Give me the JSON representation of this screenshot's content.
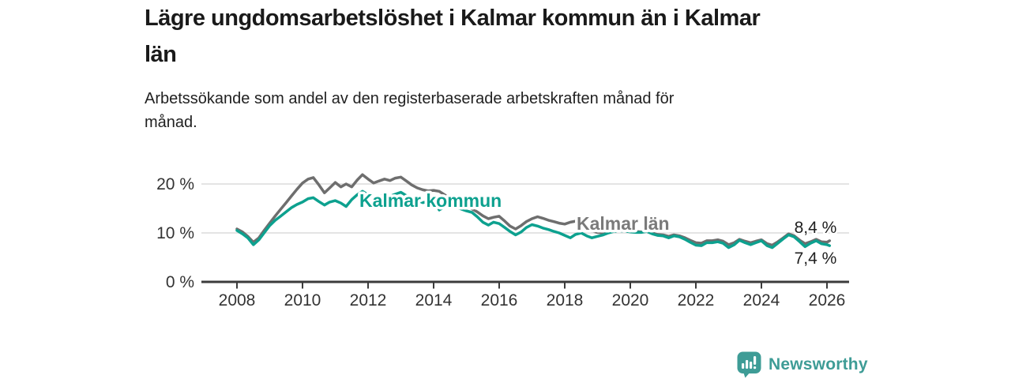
{
  "title": "Lägre ungdomsarbetslöshet i Kalmar kommun än i Kalmar län",
  "title_lines": [
    "Lägre ungdomsarbetslöshet i Kalmar kommun än i Kalmar",
    "län"
  ],
  "subtitle": "Arbetssökande som andel av den registerbaserade arbetskraften månad för månad.",
  "subtitle_lines": [
    "Arbetssökande som andel av den registerbaserade arbetskraften månad för",
    "månad."
  ],
  "branding": {
    "logo_text": "Newsworthy",
    "logo_icon": "bar-chart-speech-bubble-icon",
    "logo_color": "#3e9c96"
  },
  "colors": {
    "kommun_line": "#0da18f",
    "lan_line": "#6e6e6e",
    "lan_label": "#7a7a7a",
    "gridline": "#dcdcdc",
    "axis": "#3b3b3b",
    "tick_text": "#333333",
    "annotation_text": "#1f1f1f"
  },
  "chart_data": {
    "type": "line",
    "title": "Lägre ungdomsarbetslöshet i Kalmar kommun än i Kalmar län",
    "xlabel": "",
    "ylabel": "",
    "unit": "%",
    "grid": "horizontal",
    "legend": "inline-labels",
    "xlim": [
      2006.9,
      2026.7
    ],
    "ylim": [
      0,
      24
    ],
    "yticks": [
      {
        "value": 0,
        "label": "0 %"
      },
      {
        "value": 10,
        "label": "10 %"
      },
      {
        "value": 20,
        "label": "20 %"
      }
    ],
    "xticks": [
      {
        "value": 2008,
        "label": "2008"
      },
      {
        "value": 2010,
        "label": "2010"
      },
      {
        "value": 2012,
        "label": "2012"
      },
      {
        "value": 2014,
        "label": "2014"
      },
      {
        "value": 2016,
        "label": "2016"
      },
      {
        "value": 2018,
        "label": "2018"
      },
      {
        "value": 2020,
        "label": "2020"
      },
      {
        "value": 2022,
        "label": "2022"
      },
      {
        "value": 2024,
        "label": "2024"
      },
      {
        "value": 2026,
        "label": "2026"
      }
    ],
    "x": [
      2008.0,
      2008.17,
      2008.33,
      2008.5,
      2008.67,
      2008.83,
      2009.0,
      2009.17,
      2009.33,
      2009.5,
      2009.67,
      2009.83,
      2010.0,
      2010.17,
      2010.33,
      2010.5,
      2010.67,
      2010.83,
      2011.0,
      2011.17,
      2011.33,
      2011.5,
      2011.67,
      2011.83,
      2012.0,
      2012.17,
      2012.33,
      2012.5,
      2012.67,
      2012.83,
      2013.0,
      2013.17,
      2013.33,
      2013.5,
      2013.67,
      2013.83,
      2014.0,
      2014.17,
      2014.33,
      2014.5,
      2014.67,
      2014.83,
      2015.0,
      2015.17,
      2015.33,
      2015.5,
      2015.67,
      2015.83,
      2016.0,
      2016.17,
      2016.33,
      2016.5,
      2016.67,
      2016.83,
      2017.0,
      2017.17,
      2017.33,
      2017.5,
      2017.67,
      2017.83,
      2018.0,
      2018.17,
      2018.33,
      2018.5,
      2018.67,
      2018.83,
      2019.0,
      2019.17,
      2019.33,
      2019.5,
      2019.67,
      2019.83,
      2020.0,
      2020.17,
      2020.33,
      2020.5,
      2020.67,
      2020.83,
      2021.0,
      2021.17,
      2021.33,
      2021.5,
      2021.67,
      2021.83,
      2022.0,
      2022.17,
      2022.33,
      2022.5,
      2022.67,
      2022.83,
      2023.0,
      2023.17,
      2023.33,
      2023.5,
      2023.67,
      2023.83,
      2024.0,
      2024.17,
      2024.33,
      2024.5,
      2024.67,
      2024.83,
      2025.0,
      2025.17,
      2025.33,
      2025.5,
      2025.67,
      2025.83,
      2026.0,
      2026.08
    ],
    "series": [
      {
        "name": "Kalmar län",
        "color": "#6e6e6e",
        "end_label": "8,4 %",
        "end_value": 8.4,
        "values": [
          10.8,
          10.2,
          9.3,
          8.1,
          9.0,
          10.5,
          12.0,
          13.5,
          14.8,
          16.2,
          17.6,
          18.9,
          20.2,
          21.0,
          21.3,
          19.8,
          18.2,
          19.2,
          20.3,
          19.4,
          20.0,
          19.4,
          20.8,
          21.9,
          21.0,
          20.2,
          20.6,
          21.0,
          20.7,
          21.2,
          21.4,
          20.6,
          19.8,
          19.2,
          18.8,
          18.6,
          18.7,
          18.5,
          17.8,
          17.0,
          16.4,
          15.9,
          15.5,
          14.9,
          14.3,
          13.5,
          12.9,
          13.2,
          13.4,
          12.4,
          11.4,
          10.8,
          11.5,
          12.3,
          12.9,
          13.3,
          13.0,
          12.6,
          12.3,
          12.0,
          11.8,
          12.2,
          12.4,
          11.8,
          11.0,
          10.4,
          10.1,
          10.0,
          10.2,
          10.5,
          10.6,
          10.6,
          10.4,
          10.3,
          10.2,
          10.4,
          10.0,
          9.7,
          9.6,
          9.3,
          9.6,
          9.4,
          9.0,
          8.5,
          8.0,
          7.9,
          8.4,
          8.4,
          8.6,
          8.3,
          7.6,
          8.0,
          8.7,
          8.3,
          8.0,
          8.3,
          8.6,
          7.8,
          7.5,
          8.2,
          9.0,
          9.8,
          9.4,
          8.5,
          7.8,
          8.2,
          8.7,
          8.2,
          8.1,
          8.4
        ]
      },
      {
        "name": "Kalmar kommun",
        "color": "#0da18f",
        "end_label": "7,4 %",
        "end_value": 7.4,
        "values": [
          10.5,
          9.8,
          9.0,
          7.6,
          8.6,
          10.0,
          11.5,
          12.6,
          13.4,
          14.3,
          15.2,
          15.8,
          16.3,
          17.0,
          17.2,
          16.4,
          15.7,
          16.3,
          16.6,
          16.1,
          15.4,
          16.8,
          17.8,
          18.5,
          17.8,
          16.9,
          17.3,
          17.8,
          17.5,
          17.9,
          18.3,
          17.6,
          17.0,
          16.6,
          16.2,
          16.4,
          16.8,
          14.7,
          15.3,
          15.8,
          15.4,
          14.9,
          14.5,
          14.2,
          13.3,
          12.2,
          11.6,
          12.2,
          11.9,
          11.1,
          10.3,
          9.6,
          10.2,
          11.1,
          11.7,
          11.4,
          11.0,
          10.7,
          10.3,
          10.0,
          9.5,
          9.0,
          9.7,
          10.0,
          9.4,
          9.0,
          9.3,
          9.6,
          10.0,
          10.3,
          10.4,
          10.4,
          10.2,
          10.1,
          10.1,
          10.3,
          9.8,
          9.5,
          9.4,
          9.0,
          9.4,
          9.2,
          8.7,
          8.1,
          7.5,
          7.4,
          8.0,
          8.0,
          8.2,
          7.9,
          7.0,
          7.6,
          8.5,
          8.0,
          7.6,
          8.0,
          8.4,
          7.4,
          7.0,
          7.9,
          8.8,
          9.6,
          9.2,
          8.2,
          7.2,
          7.9,
          8.4,
          7.8,
          7.6,
          7.4
        ]
      }
    ]
  }
}
